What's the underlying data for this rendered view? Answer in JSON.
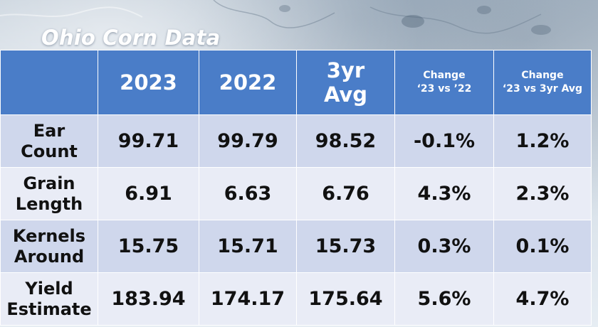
{
  "title": "Ohio Corn Data",
  "colors": {
    "header_background": "#4a7dc8",
    "header_text": "#ffffff",
    "row_band_dark": "#cfd7ec",
    "row_band_light": "#e9ecf6",
    "cell_text": "#111111"
  },
  "table": {
    "header": {
      "corner": "",
      "col_2023": "2023",
      "col_2022": "2022",
      "col_3yr": [
        "3yr",
        "Avg"
      ],
      "col_change_yoy": [
        "Change",
        "‘23 vs ’22"
      ],
      "col_change_3yr": [
        "Change",
        "‘23 vs 3yr Avg"
      ]
    },
    "rows": [
      {
        "label": [
          "Ear",
          "Count"
        ],
        "v2023": "99.71",
        "v2022": "99.79",
        "avg3yr": "98.52",
        "change_yoy": "-0.1%",
        "change_3yr": "1.2%"
      },
      {
        "label": [
          "Grain",
          "Length"
        ],
        "v2023": "6.91",
        "v2022": "6.63",
        "avg3yr": "6.76",
        "change_yoy": "4.3%",
        "change_3yr": "2.3%"
      },
      {
        "label": [
          "Kernels",
          "Around"
        ],
        "v2023": "15.75",
        "v2022": "15.71",
        "avg3yr": "15.73",
        "change_yoy": "0.3%",
        "change_3yr": "0.1%"
      },
      {
        "label": [
          "Yield",
          "Estimate"
        ],
        "v2023": "183.94",
        "v2022": "174.17",
        "avg3yr": "175.64",
        "change_yoy": "5.6%",
        "change_3yr": "4.7%"
      }
    ]
  }
}
